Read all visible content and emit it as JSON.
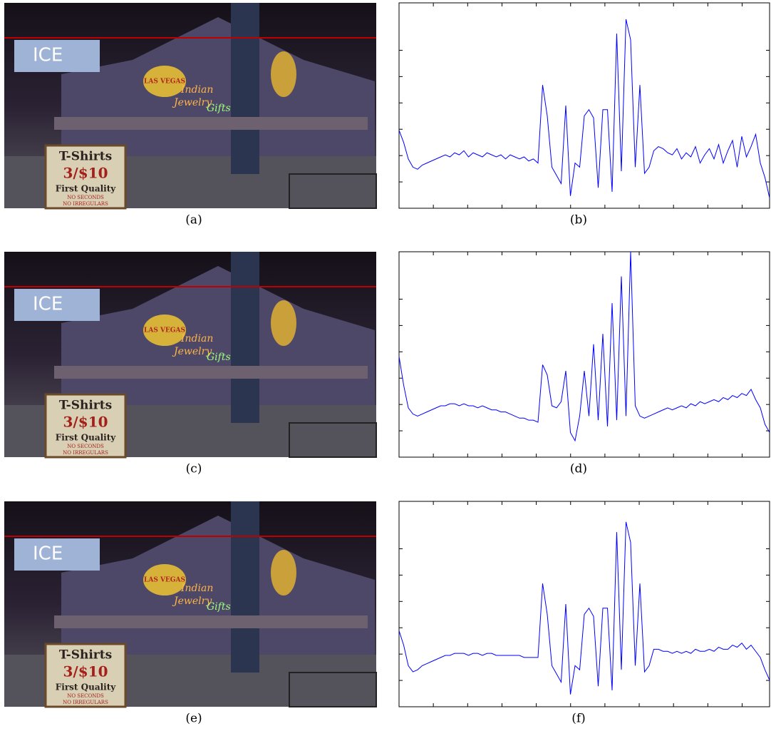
{
  "figure": {
    "scene_text": {
      "sign_title": "T-Shirts",
      "sign_price": "3/$10",
      "sign_quality": "First Quality",
      "sign_note1": "NO SECONDS",
      "sign_note2": "NO IRREGULARS",
      "neon1": "Indian",
      "neon2": "Jewelry",
      "neon3": "Gifts",
      "neon4": "LAS VEGAS",
      "billboard": "ICE"
    },
    "images": [
      {
        "caption": "(a)"
      },
      {
        "caption": "(c)"
      },
      {
        "caption": "(e)"
      }
    ],
    "plots": [
      {
        "type": "line",
        "caption": "(b)",
        "color": "#0000ff",
        "ylim": [
          0,
          100
        ],
        "values": [
          38,
          32,
          24,
          20,
          19,
          21,
          22,
          23,
          24,
          25,
          26,
          25,
          27,
          26,
          28,
          25,
          27,
          26,
          25,
          27,
          26,
          25,
          26,
          24,
          26,
          25,
          24,
          25,
          23,
          24,
          22,
          60,
          45,
          20,
          16,
          12,
          50,
          6,
          22,
          20,
          45,
          48,
          44,
          10,
          48,
          48,
          8,
          85,
          18,
          92,
          82,
          20,
          60,
          17,
          20,
          28,
          30,
          29,
          27,
          26,
          29,
          24,
          27,
          25,
          30,
          22,
          26,
          29,
          24,
          31,
          22,
          28,
          33,
          20,
          35,
          25,
          30,
          36,
          22,
          15,
          5
        ]
      },
      {
        "type": "line",
        "caption": "(d)",
        "color": "#0000ff",
        "ylim": [
          0,
          100
        ],
        "values": [
          49,
          35,
          24,
          21,
          20,
          21,
          22,
          23,
          24,
          25,
          25,
          26,
          26,
          25,
          26,
          25,
          25,
          24,
          25,
          24,
          23,
          23,
          22,
          22,
          21,
          20,
          19,
          19,
          18,
          18,
          17,
          45,
          40,
          25,
          24,
          27,
          42,
          12,
          8,
          20,
          42,
          20,
          55,
          18,
          60,
          15,
          75,
          18,
          88,
          20,
          100,
          25,
          20,
          19,
          20,
          21,
          22,
          23,
          24,
          23,
          24,
          25,
          24,
          26,
          25,
          27,
          26,
          27,
          28,
          27,
          29,
          28,
          30,
          29,
          31,
          30,
          33,
          28,
          24,
          16,
          12
        ]
      },
      {
        "type": "line",
        "caption": "(f)",
        "color": "#0000ff",
        "ylim": [
          0,
          100
        ],
        "values": [
          37,
          30,
          20,
          17,
          18,
          20,
          21,
          22,
          23,
          24,
          25,
          25,
          26,
          26,
          26,
          25,
          26,
          26,
          25,
          26,
          26,
          25,
          25,
          25,
          25,
          25,
          25,
          24,
          24,
          24,
          24,
          60,
          45,
          20,
          16,
          12,
          50,
          6,
          20,
          18,
          45,
          48,
          44,
          10,
          48,
          48,
          8,
          85,
          18,
          90,
          80,
          20,
          60,
          17,
          20,
          28,
          28,
          27,
          27,
          26,
          27,
          26,
          27,
          26,
          28,
          27,
          27,
          28,
          27,
          29,
          28,
          28,
          30,
          29,
          31,
          28,
          30,
          27,
          24,
          18,
          13
        ]
      }
    ]
  }
}
